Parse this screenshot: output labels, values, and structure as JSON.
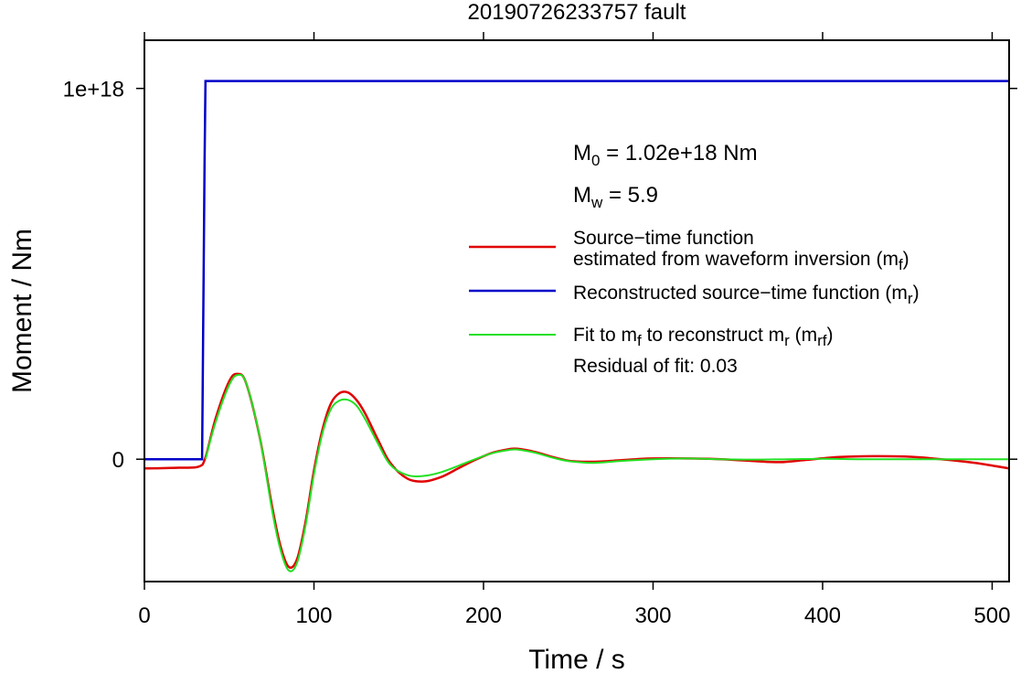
{
  "chart_data": {
    "type": "line",
    "title": "20190726233757 fault",
    "xlabel": "Time / s",
    "ylabel": "Moment / Nm",
    "xlim": [
      0,
      510
    ],
    "ylim": [
      -3.3e+17,
      1.13e+18
    ],
    "x_ticks": [
      0,
      100,
      200,
      300,
      400,
      500
    ],
    "x_tick_labels": [
      "0",
      "100",
      "200",
      "300",
      "400",
      "500"
    ],
    "y_ticks": [
      0,
      1e+18
    ],
    "y_tick_labels": [
      "0",
      "1e+18"
    ],
    "grid": false,
    "legend_position": "right",
    "annotations": {
      "m0": {
        "main": "M",
        "sub": "0",
        "rest": " = 1.02e+18 Nm"
      },
      "mw": {
        "main": "M",
        "sub": "w",
        "rest": " = 5.9"
      },
      "residual": "Residual of fit: 0.03"
    },
    "legend": [
      {
        "color": "#e00000",
        "lines": [
          [
            {
              "t": "Source−time function"
            }
          ],
          [
            {
              "t": "estimated from waveform inversion (m"
            },
            {
              "t": "f",
              "sub": true
            },
            {
              "t": ")"
            }
          ]
        ]
      },
      {
        "color": "#0000c8",
        "lines": [
          [
            {
              "t": "Reconstructed source−time function (m"
            },
            {
              "t": "r",
              "sub": true
            },
            {
              "t": ")"
            }
          ]
        ]
      },
      {
        "color": "#22e022",
        "lines": [
          [
            {
              "t": "Fit to m"
            },
            {
              "t": "f",
              "sub": true
            },
            {
              "t": " to reconstruct m"
            },
            {
              "t": "r",
              "sub": true
            },
            {
              "t": " (m"
            },
            {
              "t": "rf",
              "sub": true
            },
            {
              "t": ")"
            }
          ]
        ]
      }
    ],
    "series": [
      {
        "color": "#e00000",
        "x": [
          0,
          20,
          32,
          36,
          42,
          50,
          55,
          60,
          68,
          75,
          80,
          85,
          90,
          95,
          100,
          105,
          110,
          115,
          120,
          125,
          130,
          138,
          145,
          155,
          165,
          175,
          185,
          195,
          205,
          215,
          220,
          230,
          240,
          250,
          260,
          270,
          280,
          290,
          300,
          320,
          340,
          360,
          375,
          390,
          410,
          430,
          450,
          470,
          490,
          510
        ],
        "y": [
          -2.5e+16,
          -2.3e+16,
          -2e+16,
          5000000000000000.0,
          1.1e+17,
          2.1e+17,
          2.3e+17,
          2.05e+17,
          6e+16,
          -1.2e+17,
          -2.3e+17,
          -2.9e+17,
          -2.7e+17,
          -1.7e+17,
          -3e+16,
          8e+16,
          1.5e+17,
          1.78e+17,
          1.8e+17,
          1.6e+17,
          1.25e+17,
          5e+16,
          -1e+16,
          -5.2e+16,
          -6e+16,
          -4.8e+16,
          -2.5e+16,
          -2000000000000000.0,
          1.7e+16,
          2.7e+16,
          2.8e+16,
          2e+16,
          7000000000000000.0,
          -4000000000000000.0,
          -7000000000000000.0,
          -6000000000000000.0,
          -3000000000000000.0,
          0.0,
          2000000000000000.0,
          2000000000000000.0,
          0.0,
          -5000000000000000.0,
          -8000000000000000.0,
          -2000000000000000.0,
          6000000000000000.0,
          8000000000000000.0,
          7000000000000000.0,
          0.0,
          -1e+16,
          -2.5e+16
        ]
      },
      {
        "color": "#0000c8",
        "x": [
          0,
          34,
          35.5,
          36,
          37,
          510
        ],
        "y": [
          0,
          0,
          8e+17,
          1.02e+18,
          1.02e+18,
          1.02e+18
        ]
      },
      {
        "color": "#22e022",
        "x": [
          36,
          42,
          50,
          55,
          60,
          68,
          75,
          80,
          85,
          90,
          95,
          100,
          105,
          110,
          115,
          120,
          125,
          130,
          138,
          145,
          155,
          165,
          175,
          185,
          195,
          205,
          215,
          220,
          230,
          240,
          250,
          265,
          280,
          300,
          320,
          340,
          360,
          380,
          400,
          420,
          440,
          460,
          480,
          510
        ],
        "y": [
          0,
          1e+17,
          2e+17,
          2.27e+17,
          2.05e+17,
          6e+16,
          -1.3e+17,
          -2.4e+17,
          -3e+17,
          -2.8e+17,
          -1.8e+17,
          -4e+16,
          7e+16,
          1.35e+17,
          1.58e+17,
          1.6e+17,
          1.45e+17,
          1.1e+17,
          4e+16,
          -1.5e+16,
          -4.3e+16,
          -4.5e+16,
          -3.5e+16,
          -1.8e+16,
          0.0,
          1.6e+16,
          2.5e+16,
          2.6e+16,
          1.8e+16,
          5000000000000000.0,
          -5000000000000000.0,
          -1e+16,
          -5000000000000000.0,
          0.0,
          2000000000000000.0,
          0.0,
          -1000000000000000.0,
          0.0,
          1000000000000000.0,
          0.0,
          0.0,
          0.0,
          0.0,
          0.0
        ]
      }
    ]
  }
}
